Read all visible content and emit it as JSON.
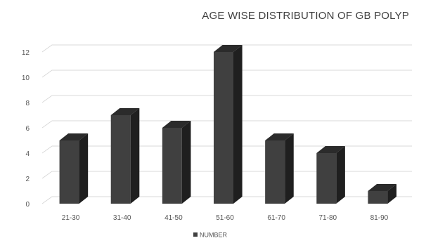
{
  "chart_data": {
    "type": "bar",
    "title": "AGE WISE DISTRIBUTION OF GB POLYP",
    "categories": [
      "21-30",
      "31-40",
      "41-50",
      "51-60",
      "61-70",
      "71-80",
      "81-90"
    ],
    "series": [
      {
        "name": "NUMBER",
        "values": [
          5,
          7,
          6,
          12,
          5,
          4,
          1
        ]
      }
    ],
    "ylim": [
      0,
      12
    ],
    "yticks": [
      0,
      2,
      4,
      6,
      8,
      10,
      12
    ],
    "grid": true,
    "legend_position": "bottom",
    "colors": {
      "bar_front": "#404040",
      "bar_side": "#1f1f1f",
      "bar_top": "#2b2b2b",
      "grid": "#d9d9d9"
    }
  }
}
